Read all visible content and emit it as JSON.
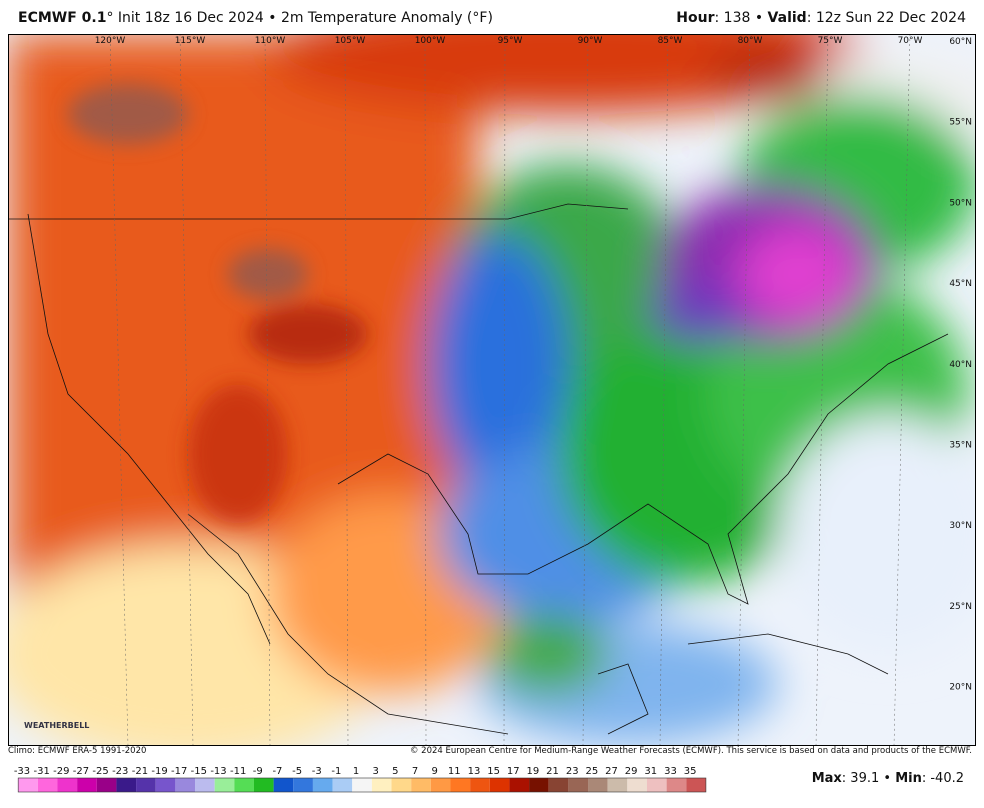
{
  "header": {
    "model": "ECMWF 0.1",
    "description": "° Init 18z 16 Dec 2024 • 2m Temperature Anomaly (°F)",
    "hour_label": "Hour",
    "hour_text": ": 138 • ",
    "valid_label": "Valid",
    "valid_text": ": 12z Sun 22 Dec 2024"
  },
  "map": {
    "longitudes": [
      "120°W",
      "115°W",
      "110°W",
      "105°W",
      "100°W",
      "95°W",
      "90°W",
      "85°W",
      "80°W",
      "75°W",
      "70°W"
    ],
    "latitudes": [
      "60°N",
      "55°N",
      "50°N",
      "45°N",
      "40°N",
      "35°N",
      "30°N",
      "25°N",
      "20°N"
    ],
    "logo": "WEATHERBELL"
  },
  "footer": {
    "climo": "Climo: ECMWF ERA-5 1991-2020",
    "copyright": "© 2024 European Centre for Medium-Range Weather Forecasts (ECMWF). This service is based on data and products of the ECMWF.",
    "max_label": "Max",
    "max_text": ": 39.1 • ",
    "min_label": "Min",
    "min_text": ": -40.2"
  },
  "colorbar": {
    "labels": [
      "-33",
      "-31",
      "-29",
      "-27",
      "-25",
      "-23",
      "-21",
      "-19",
      "-17",
      "-15",
      "-13",
      "-11",
      "-9",
      "-7",
      "-5",
      "-3",
      "-1",
      "1",
      "3",
      "5",
      "7",
      "9",
      "11",
      "13",
      "15",
      "17",
      "19",
      "21",
      "23",
      "25",
      "27",
      "29",
      "31",
      "33",
      "35"
    ],
    "colors": [
      "#ff99ee",
      "#ff66dd",
      "#ee33cc",
      "#cc00aa",
      "#990088",
      "#3a1a8a",
      "#5533aa",
      "#7755cc",
      "#9988dd",
      "#bbbbee",
      "#99ee99",
      "#55dd55",
      "#22bb22",
      "#1155cc",
      "#3377dd",
      "#66aaee",
      "#aaccf5",
      "#f5f5f5",
      "#fff0c0",
      "#ffd88a",
      "#ffbb66",
      "#ff9944",
      "#ff7722",
      "#ee5511",
      "#dd3300",
      "#aa1100",
      "#771100",
      "#884433",
      "#996655",
      "#aa8877",
      "#ccbbaa",
      "#eeddd0",
      "#eec0c0",
      "#dd8888",
      "#cc5555"
    ]
  }
}
